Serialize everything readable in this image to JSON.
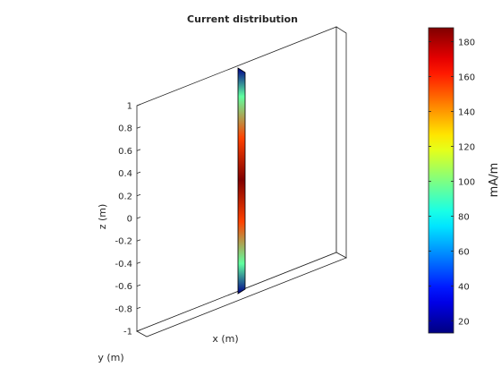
{
  "chart_data": {
    "type": "3d-surface",
    "title": "Current distribution",
    "xlabel": "x (m)",
    "ylabel": "y (m)",
    "zlabel": "z (m)",
    "zlim": [
      -1,
      1
    ],
    "zticks": [
      "-1",
      "-0.8",
      "-0.6",
      "-0.4",
      "-0.2",
      "0",
      "0.2",
      "0.4",
      "0.6",
      "0.8",
      "1"
    ],
    "colormap": "jet",
    "colorbar": {
      "label": "mA/m",
      "range": [
        13,
        188
      ],
      "ticks": [
        "20",
        "40",
        "60",
        "80",
        "100",
        "120",
        "140",
        "160",
        "180"
      ],
      "tick_values": [
        20,
        40,
        60,
        80,
        100,
        120,
        140,
        160,
        180
      ]
    },
    "strip": {
      "description_z": [
        -0.68,
        0.67
      ],
      "current_profile_z": [
        -0.68,
        -0.5,
        -0.25,
        0,
        0.25,
        0.5,
        0.67
      ],
      "current_profile_mA_per_m": [
        15,
        95,
        155,
        188,
        155,
        95,
        15
      ]
    }
  }
}
